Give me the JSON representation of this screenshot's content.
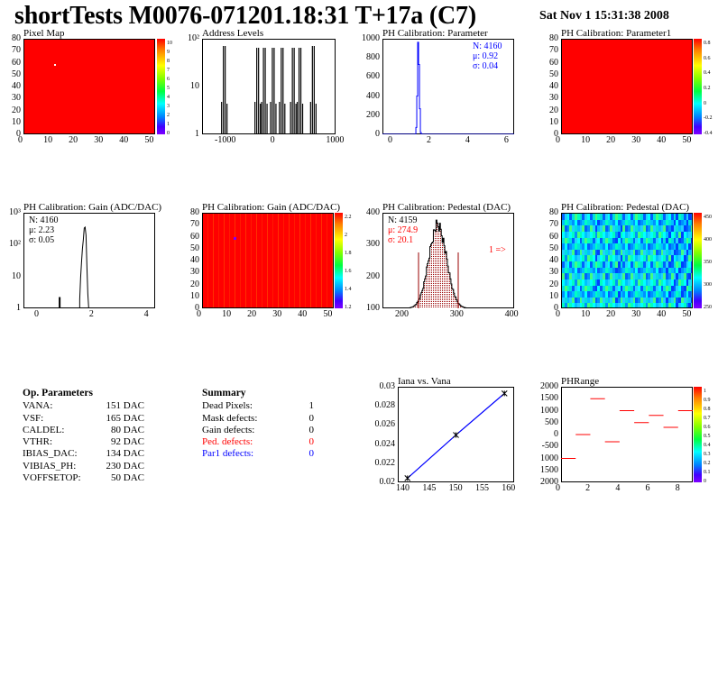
{
  "header": {
    "title": "shortTests M0076-071201.18:31 T+17a (C7)",
    "datetime": "Sat Nov  1 15:31:38 2008"
  },
  "colors": {
    "heat_red": "#ff0000",
    "stat_blue": "#0000ff",
    "stat_red": "#ff0000",
    "hist_dark_red": "#990000"
  },
  "panels": {
    "pixel_map": {
      "title": "Pixel Map",
      "yticks": [
        "80",
        "70",
        "60",
        "50",
        "40",
        "30",
        "20",
        "10",
        "0"
      ],
      "xticks": [
        "0",
        "10",
        "20",
        "30",
        "40",
        "50"
      ],
      "cticks": [
        "10",
        "9",
        "8",
        "7",
        "6",
        "5",
        "4",
        "3",
        "2",
        "1",
        "0"
      ]
    },
    "address_levels": {
      "title": "Address Levels",
      "yticks": [
        "10²",
        "10",
        "1"
      ],
      "xticks": [
        "-1000",
        "0",
        "1000"
      ]
    },
    "ph_param": {
      "title": "PH Calibration: Parameter",
      "yticks": [
        "1000",
        "800",
        "600",
        "400",
        "200",
        "0"
      ],
      "xticks": [
        "0",
        "2",
        "4",
        "6"
      ],
      "stats": [
        "N: 4160",
        "μ: 0.92",
        "σ: 0.04"
      ]
    },
    "ph_param1": {
      "title": "PH Calibration: Parameter1",
      "yticks": [
        "80",
        "70",
        "60",
        "50",
        "40",
        "30",
        "20",
        "10",
        "0"
      ],
      "xticks": [
        "0",
        "10",
        "20",
        "30",
        "40",
        "50"
      ],
      "cticks": [
        "0.8",
        "0.6",
        "0.4",
        "0.2",
        "0",
        "-0.2",
        "-0.4"
      ]
    },
    "gain_hist": {
      "title": "PH Calibration: Gain (ADC/DAC)",
      "yticks": [
        "10³",
        "10²",
        "10",
        "1"
      ],
      "xticks": [
        "0",
        "2",
        "4"
      ],
      "stats": [
        "N: 4160",
        "μ: 2.23",
        "σ: 0.05"
      ]
    },
    "gain_map": {
      "title": "PH Calibration: Gain (ADC/DAC)",
      "yticks": [
        "80",
        "70",
        "60",
        "50",
        "40",
        "30",
        "20",
        "10",
        "0"
      ],
      "xticks": [
        "0",
        "10",
        "20",
        "30",
        "40",
        "50"
      ],
      "cticks": [
        "2.2",
        "2",
        "1.8",
        "1.6",
        "1.4",
        "1.2"
      ]
    },
    "ped_hist": {
      "title": "PH Calibration: Pedestal (DAC)",
      "yticks": [
        "400",
        "300",
        "200",
        "100"
      ],
      "xticks": [
        "200",
        "300",
        "400"
      ],
      "stats": [
        "N: 4159",
        "μ: 274.9",
        "σ: 20.1"
      ],
      "arrow": "1 =>"
    },
    "ped_map": {
      "title": "PH Calibration: Pedestal (DAC)",
      "yticks": [
        "80",
        "70",
        "60",
        "50",
        "40",
        "30",
        "20",
        "10",
        "0"
      ],
      "xticks": [
        "0",
        "10",
        "20",
        "30",
        "40",
        "50"
      ],
      "cticks": [
        "450",
        "400",
        "350",
        "300",
        "250"
      ]
    },
    "iana": {
      "title": "Iana vs. Vana",
      "yticks": [
        "0.03",
        "0.028",
        "0.026",
        "0.024",
        "0.022",
        "0.02"
      ],
      "xticks": [
        "140",
        "145",
        "150",
        "155",
        "160"
      ]
    },
    "phrange": {
      "title": "PHRange",
      "yticks": [
        "2000",
        "1500",
        "1000",
        "500",
        "0",
        "-500",
        "1000",
        "1500",
        "2000"
      ],
      "xticks": [
        "0",
        "2",
        "4",
        "6",
        "8"
      ],
      "cticks": [
        "1",
        "0.9",
        "0.8",
        "0.7",
        "0.6",
        "0.5",
        "0.4",
        "0.3",
        "0.2",
        "0.1",
        "0"
      ]
    }
  },
  "op_params": {
    "heading": "Op. Parameters",
    "rows": [
      {
        "name": "VANA:",
        "value": "151 DAC"
      },
      {
        "name": "VSF:",
        "value": "165 DAC"
      },
      {
        "name": "CALDEL:",
        "value": "80 DAC"
      },
      {
        "name": "VTHR:",
        "value": "92 DAC"
      },
      {
        "name": "IBIAS_DAC:",
        "value": "134 DAC"
      },
      {
        "name": "VIBIAS_PH:",
        "value": "230 DAC"
      },
      {
        "name": "VOFFSETOP:",
        "value": "50 DAC"
      }
    ]
  },
  "summary": {
    "heading": "Summary",
    "rows": [
      {
        "name": "Dead Pixels:",
        "value": "1"
      },
      {
        "name": "Mask defects:",
        "value": "0"
      },
      {
        "name": "Gain defects:",
        "value": "0"
      },
      {
        "name": "Ped. defects:",
        "value": "0"
      },
      {
        "name": "Par1 defects:",
        "value": "0"
      }
    ]
  },
  "chart_data": [
    {
      "type": "heatmap",
      "title": "Pixel Map",
      "xlim": [
        0,
        52
      ],
      "ylim": [
        0,
        80
      ],
      "note_value": "uniform 10 with one dead pixel",
      "dead_pixel": [
        12,
        58
      ]
    },
    {
      "type": "bar",
      "title": "Address Levels",
      "xlim": [
        -1500,
        1500
      ],
      "yscale": "log",
      "peaks_x": [
        -1000,
        -250,
        -100,
        100,
        300,
        550,
        700,
        1000
      ]
    },
    {
      "type": "bar",
      "title": "PH Calibration: Parameter",
      "xlim": [
        -1,
        6
      ],
      "ylim": [
        0,
        1100
      ],
      "peak_x": 0.92,
      "peak_y": 1080
    },
    {
      "type": "heatmap",
      "title": "PH Calibration: Parameter1",
      "xlim": [
        0,
        52
      ],
      "ylim": [
        0,
        80
      ]
    },
    {
      "type": "bar",
      "title": "PH Calibration: Gain (ADC/DAC)",
      "xlim": [
        -1,
        6
      ],
      "yscale": "log",
      "peak_x": 2.23
    },
    {
      "type": "heatmap",
      "title": "PH Calibration: Gain (ADC/DAC)",
      "xlim": [
        0,
        52
      ],
      "ylim": [
        0,
        80
      ]
    },
    {
      "type": "bar",
      "title": "PH Calibration: Pedestal (DAC)",
      "xlim": [
        150,
        450
      ],
      "ylim": [
        0,
        100
      ],
      "mean": 274.9,
      "sigma": 20.1
    },
    {
      "type": "heatmap",
      "title": "PH Calibration: Pedestal (DAC)",
      "xlim": [
        0,
        52
      ],
      "ylim": [
        0,
        80
      ]
    },
    {
      "type": "line",
      "title": "Iana vs. Vana",
      "x": [
        141,
        151,
        161
      ],
      "y": [
        0.0195,
        0.0247,
        0.0297
      ],
      "xlim": [
        139,
        163
      ],
      "ylim": [
        0.019,
        0.0305
      ]
    },
    {
      "type": "scatter",
      "title": "PHRange",
      "xlim": [
        0,
        9
      ],
      "ylim": [
        -2000,
        2000
      ],
      "x": [
        0.5,
        1.5,
        2.5,
        3.5,
        4.5,
        5.5,
        6.5,
        7.5,
        8.5
      ],
      "y": [
        -1000,
        0,
        1500,
        -300,
        1000,
        500,
        800,
        300,
        1000
      ]
    }
  ]
}
